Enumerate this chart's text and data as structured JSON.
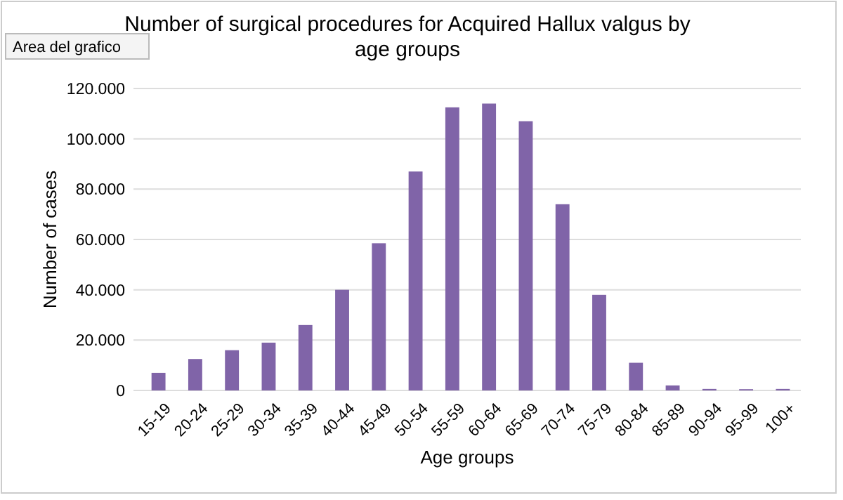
{
  "chart_data": {
    "type": "bar",
    "title": "Number of surgical procedures for Acquired Hallux valgus by age groups",
    "xlabel": "Age groups",
    "ylabel": "Number of cases",
    "annotations": [
      "Area del grafico"
    ],
    "categories": [
      "15-19",
      "20-24",
      "25-29",
      "30-34",
      "35-39",
      "40-44",
      "45-49",
      "50-54",
      "55-59",
      "60-64",
      "65-69",
      "70-74",
      "75-79",
      "80-84",
      "85-89",
      "90-94",
      "95-99",
      "100+"
    ],
    "values": [
      7000,
      12500,
      16000,
      19000,
      26000,
      40000,
      58500,
      87000,
      112500,
      114000,
      107000,
      74000,
      38000,
      11000,
      2000,
      600,
      500,
      600
    ],
    "color": "#8064a8",
    "ylim": [
      0,
      120000
    ],
    "yticks": [
      0,
      {
        "value": 20000,
        "label": "20.000"
      },
      {
        "value": 40000,
        "label": "40.000"
      },
      {
        "value": 60000,
        "label": "60.000"
      },
      {
        "value": 80000,
        "label": "80.000"
      },
      {
        "value": 100000,
        "label": "100.000"
      },
      {
        "value": 120000,
        "label": "120.000"
      }
    ],
    "grid": "y"
  }
}
